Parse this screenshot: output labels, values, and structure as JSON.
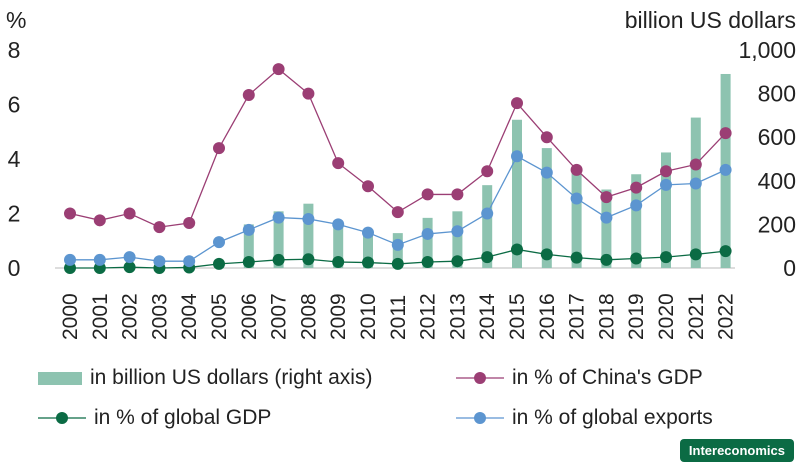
{
  "chart_data": {
    "type": "bar+line",
    "left_axis_unit": "%",
    "right_axis_unit": "billion US dollars",
    "left_ticks": [
      "0",
      "2",
      "4",
      "6",
      "8"
    ],
    "right_ticks": [
      "0",
      "200",
      "400",
      "600",
      "800",
      "1,000"
    ],
    "left_ylim": [
      0,
      8
    ],
    "right_ylim": [
      0,
      1000
    ],
    "categories": [
      "2000",
      "2001",
      "2002",
      "2003",
      "2004",
      "2005",
      "2006",
      "2007",
      "2008",
      "2009",
      "2010",
      "2011",
      "2012",
      "2013",
      "2014",
      "2015",
      "2016",
      "2017",
      "2018",
      "2019",
      "2020",
      "2021",
      "2022"
    ],
    "bars": {
      "name": "in billion US dollars (right axis)",
      "color": "#8dc3b0",
      "values": [
        5,
        5,
        6,
        6,
        7,
        17,
        200,
        260,
        295,
        200,
        175,
        160,
        230,
        260,
        380,
        680,
        550,
        440,
        360,
        430,
        530,
        690,
        890
      ]
    },
    "series": [
      {
        "name": "in % of China's GDP",
        "color": "#9b3e74",
        "values": [
          2.0,
          1.75,
          2.0,
          1.5,
          1.65,
          4.4,
          6.35,
          7.3,
          6.4,
          3.85,
          3.0,
          2.05,
          2.7,
          2.7,
          3.55,
          6.05,
          4.8,
          3.6,
          2.6,
          2.95,
          3.55,
          3.8,
          4.95
        ]
      },
      {
        "name": "in % of global GDP",
        "color": "#0b6b44",
        "values": [
          0.0,
          0.0,
          0.03,
          0.0,
          0.02,
          0.15,
          0.22,
          0.3,
          0.32,
          0.22,
          0.2,
          0.15,
          0.22,
          0.25,
          0.4,
          0.68,
          0.5,
          0.38,
          0.3,
          0.35,
          0.4,
          0.5,
          0.62
        ]
      },
      {
        "name": "in % of global exports",
        "color": "#5c95d0",
        "values": [
          0.3,
          0.3,
          0.4,
          0.25,
          0.25,
          0.95,
          1.4,
          1.85,
          1.8,
          1.6,
          1.3,
          0.85,
          1.25,
          1.35,
          2.0,
          4.1,
          3.5,
          2.55,
          1.85,
          2.3,
          3.05,
          3.1,
          3.6
        ]
      }
    ]
  },
  "brand": "Intereconomics"
}
